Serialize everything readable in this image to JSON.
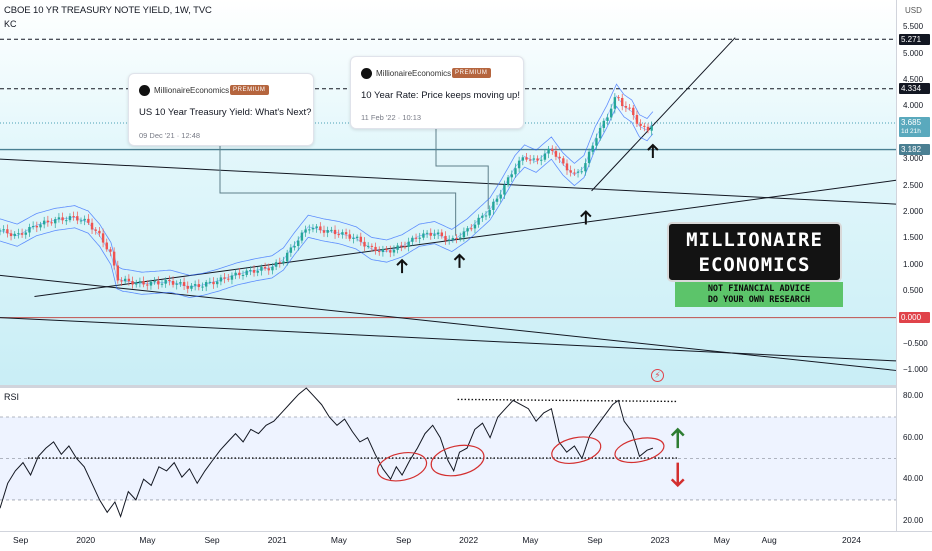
{
  "legend": {
    "title": "CBOE 10 YR TREASURY NOTE YIELD, 1W, TVC",
    "indicator": "KC"
  },
  "rsi_label": "RSI",
  "currency": "USD",
  "colors": {
    "up": "#26a69a",
    "down": "#ef5350",
    "kc_line": "#2962ff",
    "rsi_line": "#131722",
    "current_price": "#4a9fb5",
    "support": "#4a7f92",
    "badge_dark": "#131722",
    "badge_zero": "#e0434a",
    "up_arrow": "#2e7d32",
    "down_arrow": "#d32f2f",
    "circle": "#d32f2f"
  },
  "price_badges": [
    {
      "label": "5.271",
      "value": 5.271,
      "style": "dark"
    },
    {
      "label": "4.334",
      "value": 4.334,
      "style": "dark"
    },
    {
      "label": "3.685",
      "sub": "1d 21h",
      "value": 3.685,
      "style": "current"
    },
    {
      "label": "3.182",
      "value": 3.182,
      "style": "support"
    },
    {
      "label": "0.000",
      "value": 0,
      "style": "zero"
    }
  ],
  "ideas": [
    {
      "author": "MillionaireEconomics",
      "badge": "PREMIUM",
      "title": "US 10 Year Treasury Yield: What's Next?",
      "date": "09 Dec '21 · 12:48"
    },
    {
      "author": "MillionaireEconomics",
      "badge": "PREMIUM",
      "title": "10 Year Rate: Price keeps moving up!",
      "date": "11 Feb '22 · 10:13"
    }
  ],
  "logo": {
    "line1": "MILLIONAIRE",
    "line2": "ECONOMICS",
    "sub1": "NOT FINANCIAL ADVICE",
    "sub2": "DO YOUR OWN RESEARCH"
  },
  "chart_data": [
    {
      "type": "candlestick",
      "title": "CBOE 10 YR TREASURY NOTE YIELD, 1W, TVC",
      "indicator": "KC",
      "x_ticks": [
        {
          "label": "Sep",
          "date": 2019.67
        },
        {
          "label": "2020",
          "date": 2020.0
        },
        {
          "label": "May",
          "date": 2020.33
        },
        {
          "label": "Sep",
          "date": 2020.67
        },
        {
          "label": "2021",
          "date": 2021.0
        },
        {
          "label": "May",
          "date": 2021.33
        },
        {
          "label": "Sep",
          "date": 2021.67
        },
        {
          "label": "2022",
          "date": 2022.0
        },
        {
          "label": "May",
          "date": 2022.33
        },
        {
          "label": "Sep",
          "date": 2022.67
        },
        {
          "label": "2023",
          "date": 2023.0
        },
        {
          "label": "May",
          "date": 2023.33
        },
        {
          "label": "Aug",
          "date": 2023.58
        },
        {
          "label": "2024",
          "date": 2024.0
        }
      ],
      "x_range": [
        2019.56,
        2024.24
      ],
      "y_ticks": [
        "5.500",
        "5.000",
        "4.500",
        "4.000",
        "3.500",
        "3.000",
        "2.500",
        "2.000",
        "1.500",
        "1.000",
        "0.500",
        "−0.500",
        "−1.000"
      ],
      "y_tick_values": [
        5.5,
        5.0,
        4.5,
        4.0,
        3.5,
        3.0,
        2.5,
        2.0,
        1.5,
        1.0,
        0.5,
        -0.5,
        -1.0
      ],
      "ylim": [
        -1.2,
        5.9
      ],
      "close_path": [
        [
          2019.56,
          1.65
        ],
        [
          2019.65,
          1.55
        ],
        [
          2019.75,
          1.75
        ],
        [
          2019.85,
          1.85
        ],
        [
          2019.95,
          1.9
        ],
        [
          2020.02,
          1.8
        ],
        [
          2020.08,
          1.55
        ],
        [
          2020.14,
          1.2
        ],
        [
          2020.17,
          0.75
        ],
        [
          2020.2,
          0.7
        ],
        [
          2020.24,
          0.68
        ],
        [
          2020.3,
          0.64
        ],
        [
          2020.38,
          0.66
        ],
        [
          2020.45,
          0.68
        ],
        [
          2020.55,
          0.58
        ],
        [
          2020.62,
          0.62
        ],
        [
          2020.7,
          0.7
        ],
        [
          2020.8,
          0.82
        ],
        [
          2020.9,
          0.9
        ],
        [
          2020.98,
          0.95
        ],
        [
          2021.04,
          1.1
        ],
        [
          2021.1,
          1.4
        ],
        [
          2021.17,
          1.72
        ],
        [
          2021.25,
          1.65
        ],
        [
          2021.33,
          1.6
        ],
        [
          2021.42,
          1.5
        ],
        [
          2021.5,
          1.3
        ],
        [
          2021.58,
          1.25
        ],
        [
          2021.66,
          1.35
        ],
        [
          2021.75,
          1.55
        ],
        [
          2021.83,
          1.6
        ],
        [
          2021.92,
          1.45
        ],
        [
          2022.0,
          1.65
        ],
        [
          2022.06,
          1.85
        ],
        [
          2022.12,
          2.05
        ],
        [
          2022.18,
          2.4
        ],
        [
          2022.25,
          2.85
        ],
        [
          2022.3,
          3.05
        ],
        [
          2022.36,
          2.95
        ],
        [
          2022.44,
          3.2
        ],
        [
          2022.5,
          2.9
        ],
        [
          2022.56,
          2.7
        ],
        [
          2022.61,
          2.85
        ],
        [
          2022.67,
          3.4
        ],
        [
          2022.73,
          3.8
        ],
        [
          2022.78,
          4.2
        ],
        [
          2022.82,
          4.0
        ],
        [
          2022.86,
          3.9
        ],
        [
          2022.9,
          3.62
        ],
        [
          2022.94,
          3.55
        ],
        [
          2022.97,
          3.68
        ]
      ],
      "channel_upper_offset": 0.22,
      "channel_lower_offset": -0.2,
      "horizontal_levels": [
        5.271,
        4.334,
        3.182,
        0.0
      ],
      "trend_lines": [
        {
          "name": "long-channel-top",
          "from": [
            2019.56,
            3.0
          ],
          "to": [
            2024.24,
            2.15
          ]
        },
        {
          "name": "long-channel-bottom",
          "from": [
            2019.56,
            0.0
          ],
          "to": [
            2024.24,
            -0.82
          ]
        },
        {
          "name": "lower-channel",
          "from": [
            2019.56,
            0.8
          ],
          "to": [
            2024.24,
            -1.0
          ]
        },
        {
          "name": "support-rising",
          "from": [
            2019.74,
            0.4
          ],
          "to": [
            2024.24,
            2.6
          ]
        },
        {
          "name": "steep-uptrend",
          "from": [
            2022.65,
            2.4
          ],
          "to": [
            2023.4,
            5.3
          ]
        }
      ]
    },
    {
      "type": "line",
      "title": "RSI",
      "y_ticks": [
        "80.00",
        "60.00",
        "40.00",
        "20.00"
      ],
      "y_tick_values": [
        80,
        60,
        40,
        20
      ],
      "ylim": [
        15,
        84
      ],
      "band": [
        30,
        70
      ],
      "midline": 50,
      "x_range": [
        2019.56,
        2024.24
      ],
      "values": [
        [
          2019.56,
          26
        ],
        [
          2019.6,
          38
        ],
        [
          2019.64,
          44
        ],
        [
          2019.68,
          48
        ],
        [
          2019.72,
          42
        ],
        [
          2019.76,
          51
        ],
        [
          2019.8,
          55
        ],
        [
          2019.84,
          58
        ],
        [
          2019.88,
          52
        ],
        [
          2019.92,
          56
        ],
        [
          2019.96,
          50
        ],
        [
          2020.0,
          46
        ],
        [
          2020.04,
          38
        ],
        [
          2020.08,
          30
        ],
        [
          2020.12,
          24
        ],
        [
          2020.16,
          29
        ],
        [
          2020.19,
          22
        ],
        [
          2020.23,
          34
        ],
        [
          2020.27,
          30
        ],
        [
          2020.31,
          40
        ],
        [
          2020.35,
          37
        ],
        [
          2020.39,
          46
        ],
        [
          2020.43,
          44
        ],
        [
          2020.47,
          48
        ],
        [
          2020.51,
          41
        ],
        [
          2020.55,
          45
        ],
        [
          2020.59,
          38
        ],
        [
          2020.63,
          44
        ],
        [
          2020.67,
          49
        ],
        [
          2020.71,
          54
        ],
        [
          2020.75,
          58
        ],
        [
          2020.79,
          62
        ],
        [
          2020.83,
          58
        ],
        [
          2020.87,
          64
        ],
        [
          2020.91,
          62
        ],
        [
          2020.95,
          66
        ],
        [
          2020.99,
          68
        ],
        [
          2021.04,
          73
        ],
        [
          2021.08,
          77
        ],
        [
          2021.12,
          81
        ],
        [
          2021.16,
          84
        ],
        [
          2021.2,
          80
        ],
        [
          2021.24,
          76
        ],
        [
          2021.28,
          70
        ],
        [
          2021.32,
          66
        ],
        [
          2021.36,
          69
        ],
        [
          2021.4,
          63
        ],
        [
          2021.44,
          58
        ],
        [
          2021.48,
          60
        ],
        [
          2021.52,
          52
        ],
        [
          2021.56,
          45
        ],
        [
          2021.6,
          40
        ],
        [
          2021.63,
          46
        ],
        [
          2021.66,
          42
        ],
        [
          2021.7,
          49
        ],
        [
          2021.74,
          55
        ],
        [
          2021.78,
          62
        ],
        [
          2021.82,
          66
        ],
        [
          2021.86,
          60
        ],
        [
          2021.9,
          49
        ],
        [
          2021.93,
          44
        ],
        [
          2021.96,
          53
        ],
        [
          2022.0,
          55
        ],
        [
          2022.04,
          64
        ],
        [
          2022.08,
          67
        ],
        [
          2022.12,
          60
        ],
        [
          2022.16,
          70
        ],
        [
          2022.2,
          74
        ],
        [
          2022.24,
          78
        ],
        [
          2022.28,
          76
        ],
        [
          2022.32,
          74
        ],
        [
          2022.36,
          68
        ],
        [
          2022.4,
          72
        ],
        [
          2022.44,
          74
        ],
        [
          2022.48,
          58
        ],
        [
          2022.52,
          53
        ],
        [
          2022.56,
          56
        ],
        [
          2022.6,
          50
        ],
        [
          2022.64,
          61
        ],
        [
          2022.68,
          66
        ],
        [
          2022.72,
          71
        ],
        [
          2022.76,
          76
        ],
        [
          2022.79,
          78
        ],
        [
          2022.82,
          68
        ],
        [
          2022.86,
          63
        ],
        [
          2022.9,
          51
        ],
        [
          2022.94,
          54
        ],
        [
          2022.97,
          55
        ]
      ]
    }
  ],
  "annotations": {
    "rsi_resistance": {
      "from": [
        2021.95,
        78.5
      ],
      "to": [
        2023.1,
        77.5
      ]
    },
    "rsi_support": {
      "from": [
        2019.56,
        50.2
      ],
      "to": [
        2023.1,
        50.2
      ]
    },
    "rsi_circles": [
      {
        "center": [
          2021.66,
          46
        ],
        "rx": 0.13,
        "ry": 6.5
      },
      {
        "center": [
          2021.95,
          49
        ],
        "rx": 0.14,
        "ry": 7.0
      },
      {
        "center": [
          2022.57,
          54
        ],
        "rx": 0.13,
        "ry": 6.0
      },
      {
        "center": [
          2022.9,
          54
        ],
        "rx": 0.13,
        "ry": 5.5
      }
    ],
    "price_arrows": [
      {
        "at": [
          2021.66,
          0.88
        ]
      },
      {
        "at": [
          2021.96,
          0.98
        ]
      },
      {
        "at": [
          2022.62,
          1.8
        ]
      },
      {
        "at": [
          2022.97,
          3.06
        ]
      }
    ],
    "rsi_arrows": {
      "x": 2023.1,
      "up": [
        64,
        55
      ],
      "down": [
        48,
        37
      ]
    }
  }
}
